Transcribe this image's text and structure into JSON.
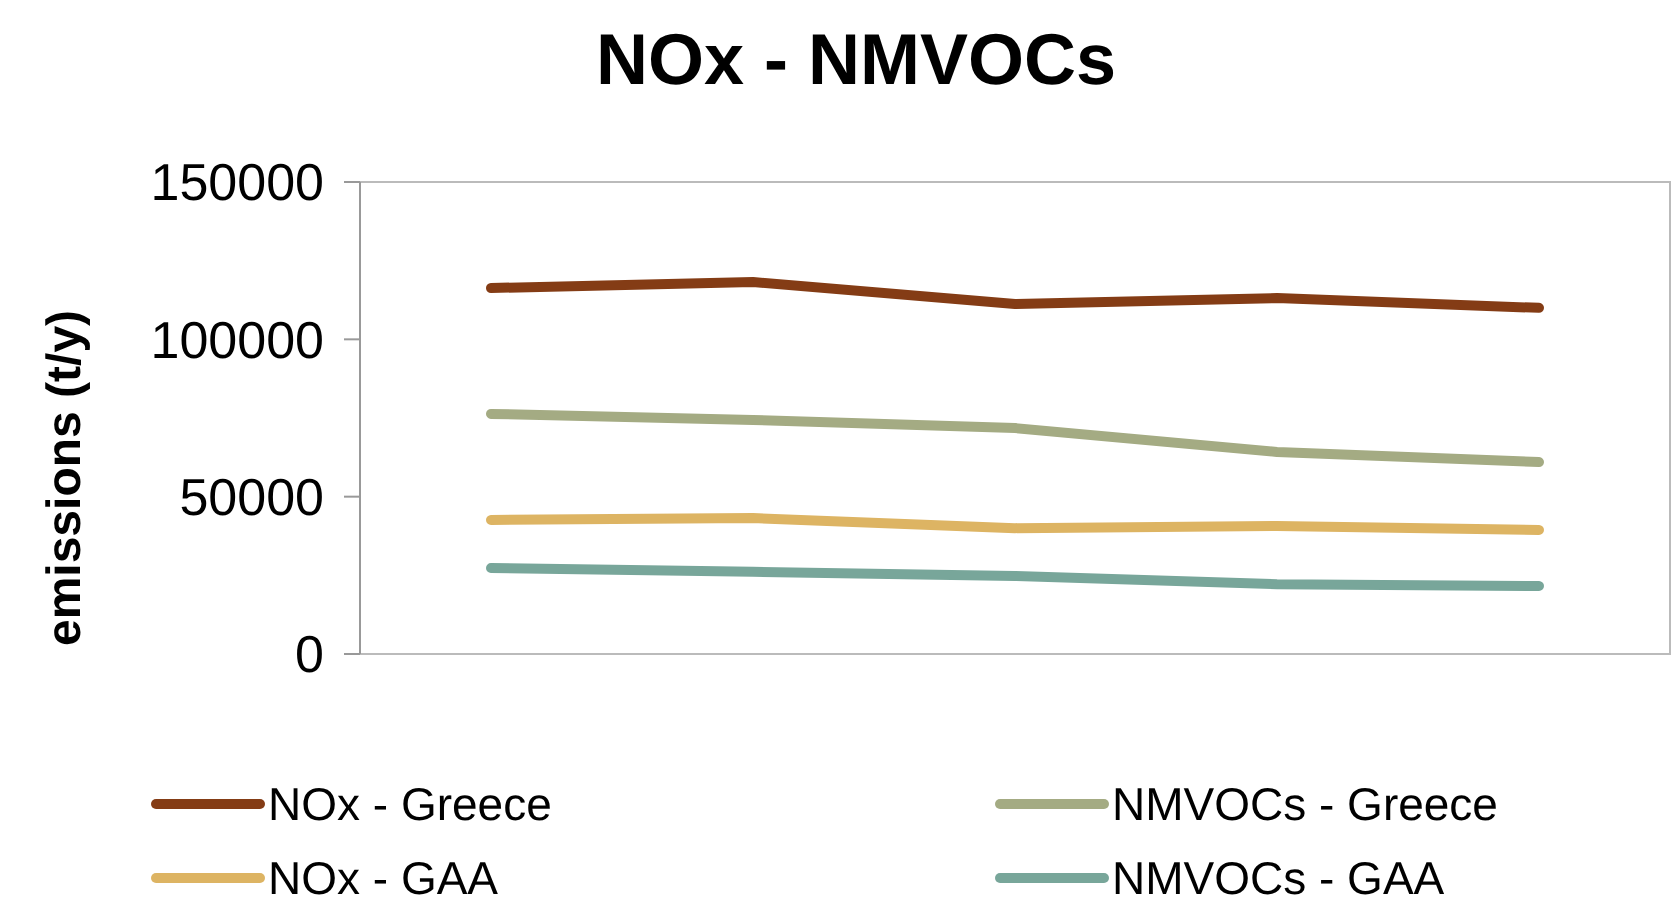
{
  "chart_data": {
    "type": "line",
    "title": "NOx - NMVOCs",
    "ylabel": "emissions (t/y)",
    "categories": [
      null,
      null,
      null,
      null,
      null
    ],
    "series": [
      {
        "name": "NOx - Greece",
        "color": "#843c15",
        "values": [
          116300,
          118200,
          111200,
          113100,
          110000
        ]
      },
      {
        "name": "NMVOCs - Greece",
        "color": "#a4ab83",
        "values": [
          76300,
          74400,
          71800,
          64200,
          61000
        ]
      },
      {
        "name": "NOx - GAA",
        "color": "#ddb463",
        "values": [
          42600,
          43200,
          40000,
          40700,
          39400
        ]
      },
      {
        "name": "NMVOCs - GAA",
        "color": "#78a69a",
        "values": [
          27300,
          26100,
          24800,
          22200,
          21600
        ]
      }
    ],
    "ylim": [
      0,
      150000
    ],
    "yticks": [
      0,
      50000,
      100000,
      150000
    ],
    "legend": "bottom",
    "marker": "none",
    "line_style": "solid"
  }
}
